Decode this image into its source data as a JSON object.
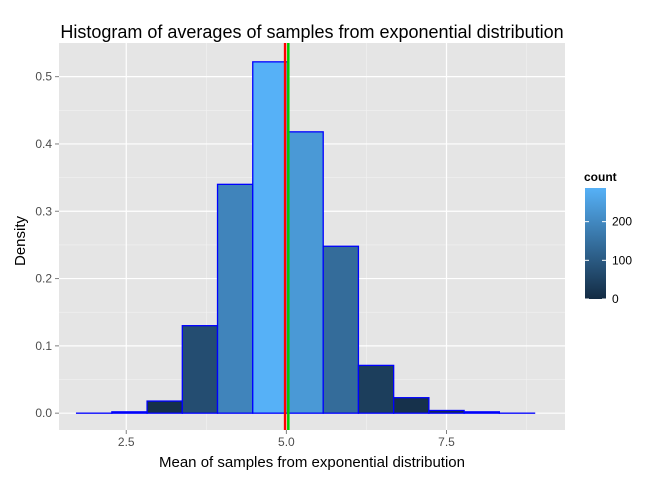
{
  "chart_data": {
    "type": "bar",
    "title": "Histogram of averages of samples from exponential distribution",
    "xlabel": "Mean of samples from exponential distribution",
    "ylabel": "Density",
    "xlim": [
      1.45,
      9.35
    ],
    "ylim": [
      -0.025,
      0.55
    ],
    "x_ticks": [
      2.5,
      5.0,
      7.5
    ],
    "x_tick_labels": [
      "2.5",
      "5.0",
      "7.5"
    ],
    "y_ticks": [
      0.0,
      0.1,
      0.2,
      0.3,
      0.4,
      0.5
    ],
    "y_tick_labels": [
      "0.0",
      "0.1",
      "0.2",
      "0.3",
      "0.4",
      "0.5"
    ],
    "grid": true,
    "bin_width": 0.55,
    "bins": [
      {
        "center": 2.0,
        "density": 0.0
      },
      {
        "center": 2.55,
        "density": 0.002
      },
      {
        "center": 3.1,
        "density": 0.018
      },
      {
        "center": 3.65,
        "density": 0.13
      },
      {
        "center": 4.2,
        "density": 0.34
      },
      {
        "center": 4.75,
        "density": 0.522
      },
      {
        "center": 5.3,
        "density": 0.418
      },
      {
        "center": 5.85,
        "density": 0.248
      },
      {
        "center": 6.4,
        "density": 0.071
      },
      {
        "center": 6.95,
        "density": 0.023
      },
      {
        "center": 7.5,
        "density": 0.004
      },
      {
        "center": 8.05,
        "density": 0.002
      },
      {
        "center": 8.6,
        "density": 0.0
      }
    ],
    "bar_outline_color": "#0000ff",
    "vlines": [
      {
        "x": 4.98,
        "color": "#ff0000"
      },
      {
        "x": 5.03,
        "color": "#00cc00"
      }
    ],
    "legend": {
      "title": "count",
      "position": "right",
      "ticks": [
        0,
        100,
        200
      ],
      "tick_labels": [
        "0",
        "100",
        "200"
      ],
      "max": 287,
      "color_low": "#132b43",
      "color_high": "#56b1f7"
    }
  }
}
